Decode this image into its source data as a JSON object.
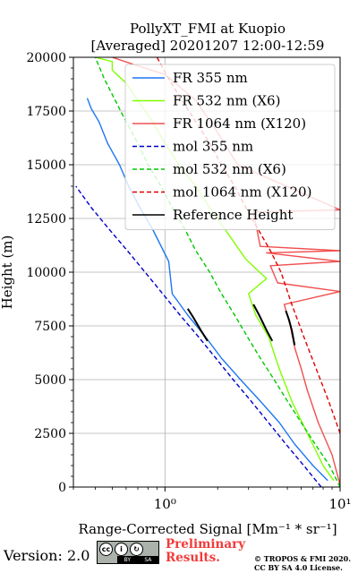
{
  "chart_data": {
    "type": "line",
    "title": "PollyXT_FMI at Kuopio",
    "subtitle": "[Averaged] 20201207 12:00-12:59",
    "xlabel": "Range-Corrected Signal [Mm⁻¹ * sr⁻¹]",
    "ylabel": "Height (m)",
    "xscale": "log",
    "xlim": [
      0.3,
      10
    ],
    "ylim": [
      0,
      20000
    ],
    "yticks": [
      "0",
      "2500",
      "5000",
      "7500",
      "10000",
      "12500",
      "15000",
      "17500",
      "20000"
    ],
    "xticks": [
      "10⁰",
      "10¹"
    ],
    "grid": true,
    "legend_position": "top-right",
    "series": [
      {
        "name": "FR 355 nm",
        "color": "#1f77f4",
        "style": "solid",
        "x": [
          8.5,
          7.0,
          5.5,
          4.5,
          3.5,
          2.7,
          2.1,
          1.7,
          1.35,
          1.1,
          1.05,
          0.85,
          0.72,
          0.62,
          0.55,
          0.47,
          0.42,
          0.38,
          0.36
        ],
        "y": [
          300,
          1000,
          2000,
          3000,
          4000,
          5000,
          6000,
          7000,
          8000,
          9000,
          10500,
          12000,
          13000,
          14000,
          15000,
          16000,
          17000,
          17600,
          18100
        ]
      },
      {
        "name": "FR 532 nm (X6)",
        "color": "#7fff00",
        "style": "solid",
        "x": [
          9.2,
          8.0,
          6.5,
          5.3,
          4.5,
          3.9,
          3.3,
          3.0,
          3.8,
          2.9,
          2.2,
          1.8,
          1.5,
          1.2,
          1.0,
          0.85,
          0.7,
          0.6,
          0.5,
          0.5,
          0.4
        ],
        "y": [
          300,
          1000,
          2500,
          4000,
          5500,
          7000,
          8000,
          9000,
          9700,
          10600,
          12000,
          13000,
          14000,
          15000,
          16000,
          17000,
          18000,
          18800,
          19400,
          19800,
          20000
        ]
      },
      {
        "name": "FR 1064 nm (X120)",
        "color": "#f05050",
        "style": "solid",
        "x": [
          10,
          9.0,
          7.5,
          6.5,
          6.0,
          5.5,
          5.2,
          4.8,
          10,
          4.4,
          4.0,
          10,
          3.8,
          10,
          3.5,
          3.2,
          10,
          2.6,
          2.0,
          1.5,
          1.0,
          0.7,
          0.5
        ],
        "y": [
          100,
          1500,
          3000,
          4500,
          5500,
          6500,
          7500,
          8500,
          9100,
          9500,
          10300,
          10500,
          10900,
          11000,
          11200,
          12800,
          12900,
          15000,
          16500,
          18000,
          19200,
          19600,
          20000
        ]
      },
      {
        "name": "mol 355 nm",
        "color": "#0000cc",
        "style": "dashed",
        "x": [
          7.8,
          6.2,
          4.9,
          3.9,
          3.1,
          2.45,
          1.95,
          1.55,
          1.22,
          0.97,
          0.77,
          0.61,
          0.48,
          0.38,
          0.31
        ],
        "y": [
          0,
          1000,
          2000,
          3000,
          4000,
          5000,
          6000,
          7000,
          8000,
          9000,
          10000,
          11000,
          12000,
          13000,
          14000
        ]
      },
      {
        "name": "mol 532 nm (X6)",
        "color": "#00c800",
        "style": "dashed",
        "x": [
          10,
          8.7,
          7.2,
          6.0,
          5.0,
          4.2,
          3.5,
          2.95,
          2.5,
          2.1,
          1.8,
          1.5,
          1.3,
          1.1,
          0.95,
          0.8,
          0.7,
          0.6,
          0.52,
          0.45,
          0.4
        ],
        "y": [
          0,
          1000,
          2000,
          3000,
          4000,
          5000,
          6000,
          7000,
          8000,
          9000,
          10000,
          11000,
          12000,
          13000,
          14000,
          15000,
          16000,
          17000,
          18000,
          19000,
          20000
        ]
      },
      {
        "name": "mol 1064 nm (X120)",
        "color": "#e00000",
        "style": "dashed",
        "x": [
          10,
          8.6,
          7.3,
          6.2,
          5.3,
          4.6,
          4.0,
          3.4,
          2.9,
          2.5,
          2.1,
          1.8,
          1.5,
          1.25,
          1.05,
          0.9
        ],
        "y": [
          2500,
          4000,
          5500,
          7000,
          8500,
          10000,
          11000,
          12000,
          13000,
          14000,
          15000,
          16000,
          17000,
          18000,
          19000,
          20000
        ]
      },
      {
        "name": "Reference Height",
        "color": "#000000",
        "style": "solid",
        "segments": [
          {
            "x": [
              1.35,
              1.45,
              1.6,
              1.75
            ],
            "y": [
              8300,
              7900,
              7300,
              6800
            ]
          },
          {
            "x": [
              3.2,
              3.45,
              3.8,
              4.1
            ],
            "y": [
              8500,
              8000,
              7300,
              6800
            ]
          },
          {
            "x": [
              4.9,
              5.1,
              5.3,
              5.5
            ],
            "y": [
              8200,
              7800,
              7300,
              6600
            ]
          }
        ]
      }
    ]
  },
  "footer": {
    "version": "Version: 2.0",
    "cc_label_by": "BY",
    "cc_label_sa": "SA",
    "cc_symbol": "cc",
    "cc_by_symbol": "i",
    "cc_sa_symbol": "↻",
    "preliminary_line1": "Preliminary",
    "preliminary_line2": "Results.",
    "copyright_line1": "© TROPOS & FMI 2020.",
    "copyright_line2": "CC BY SA 4.0 License."
  }
}
